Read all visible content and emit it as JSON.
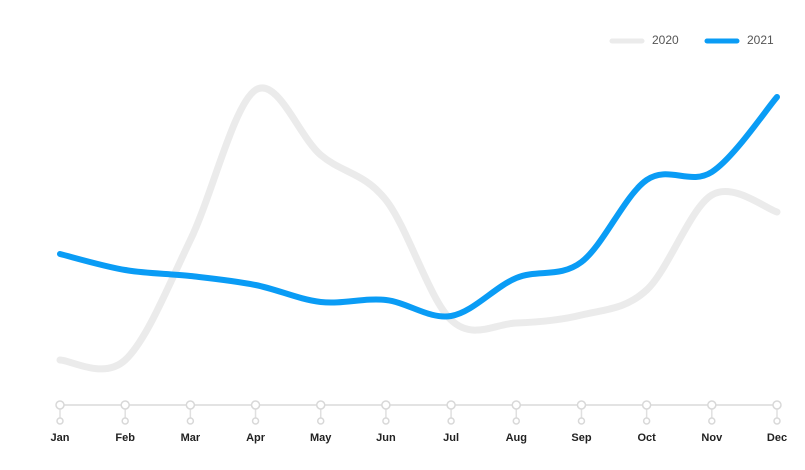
{
  "chart_data": {
    "type": "line",
    "categories": [
      "Jan",
      "Feb",
      "Mar",
      "Apr",
      "May",
      "Jun",
      "Jul",
      "Aug",
      "Sep",
      "Oct",
      "Nov",
      "Dec"
    ],
    "series": [
      {
        "name": "2020",
        "color": "#ebebeb",
        "values": [
          45,
          45,
          165,
          315,
          250,
          205,
          85,
          82,
          90,
          115,
          210,
          193
        ]
      },
      {
        "name": "2021",
        "color": "#0a9cf5",
        "values": [
          151,
          135,
          129,
          120,
          103,
          105,
          89,
          127,
          143,
          225,
          233,
          308
        ]
      }
    ],
    "legend": "top-right"
  }
}
